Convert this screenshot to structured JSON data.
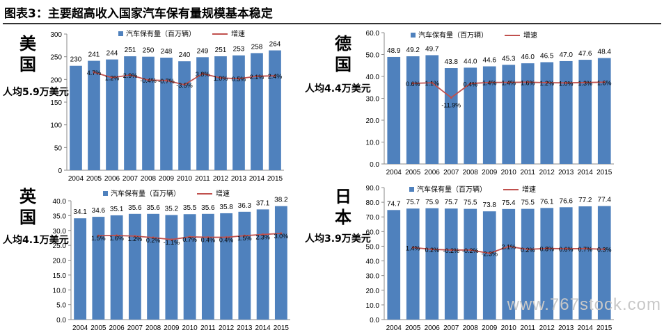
{
  "figure_title": "图表3：主要超高收入国家汽车保有量规模基本稳定",
  "watermark": "www.767stock.com",
  "colors": {
    "bar": "#4f81bd",
    "line": "#c0504d",
    "axis": "#888888",
    "text": "#000000"
  },
  "legend": {
    "bar_label": "汽车保有量（百万辆）",
    "line_label": "增速"
  },
  "chart_data": [
    {
      "type": "bar+line",
      "country": "美国",
      "per_capita": "人均5.9万美元",
      "categories": [
        "2004",
        "2005",
        "2006",
        "2007",
        "2008",
        "2009",
        "2010",
        "2011",
        "2012",
        "2013",
        "2014",
        "2015"
      ],
      "ylim": [
        0,
        300
      ],
      "yticks": [
        "0",
        "50",
        "100",
        "150",
        "200",
        "250",
        "300"
      ],
      "bar_labels": [
        "230",
        "241",
        "244",
        "251",
        "250",
        "248",
        "240",
        "249",
        "251",
        "253",
        "258",
        "264"
      ],
      "series": [
        {
          "name": "汽车保有量（百万辆）",
          "values": [
            230,
            241,
            244,
            251,
            250,
            248,
            240,
            249,
            251,
            253,
            258,
            264
          ]
        },
        {
          "name": "增速",
          "values": [
            null,
            4.7,
            1.2,
            2.9,
            -0.4,
            -0.7,
            -3.5,
            3.8,
            1.0,
            0.5,
            2.1,
            2.4
          ],
          "labels": [
            "",
            "4.7%",
            "1.2%",
            "2.9%",
            "-0.4%",
            "-0.7%",
            "-3.5%",
            "3.8%",
            "1.0%",
            "0.5%",
            "2.1%",
            "2.4%"
          ]
        }
      ]
    },
    {
      "type": "bar+line",
      "country": "德国",
      "per_capita": "人均4.4万美元",
      "categories": [
        "2004",
        "2005",
        "2006",
        "2007",
        "2008",
        "2009",
        "2010",
        "2011",
        "2012",
        "2013",
        "2014",
        "2015"
      ],
      "ylim": [
        0,
        60
      ],
      "yticks": [
        "0.0",
        "10.0",
        "20.0",
        "30.0",
        "40.0",
        "50.0",
        "60.0"
      ],
      "bar_labels": [
        "48.9",
        "49.2",
        "49.7",
        "43.8",
        "44.0",
        "44.6",
        "45.3",
        "46.0",
        "46.5",
        "47.0",
        "47.6",
        "48.4"
      ],
      "series": [
        {
          "name": "汽车保有量（百万辆）",
          "values": [
            48.9,
            49.2,
            49.7,
            43.8,
            44.0,
            44.6,
            45.3,
            46.0,
            46.5,
            47.0,
            47.6,
            48.4
          ]
        },
        {
          "name": "增速",
          "values": [
            null,
            0.6,
            1.1,
            -11.9,
            0.4,
            1.4,
            1.4,
            1.6,
            1.2,
            1.0,
            1.3,
            1.6
          ],
          "labels": [
            "",
            "0.6%",
            "1.1%",
            "-11.9%",
            "0.4%",
            "1.4%",
            "1.4%",
            "1.6%",
            "1.2%",
            "1.0%",
            "1.3%",
            "1.6%"
          ]
        }
      ]
    },
    {
      "type": "bar+line",
      "country": "英国",
      "per_capita": "人均4.1万美元",
      "categories": [
        "2004",
        "2005",
        "2006",
        "2007",
        "2008",
        "2009",
        "2010",
        "2011",
        "2012",
        "2013",
        "2014",
        "2015"
      ],
      "ylim": [
        0,
        40
      ],
      "yticks": [
        "0.0",
        "5.0",
        "10.0",
        "15.0",
        "20.0",
        "25.0",
        "30.0",
        "35.0",
        "40.0"
      ],
      "bar_labels": [
        "34.1",
        "34.6",
        "35.1",
        "35.6",
        "35.6",
        "35.2",
        "35.5",
        "35.6",
        "35.8",
        "36.3",
        "37.1",
        "38.2"
      ],
      "series": [
        {
          "name": "汽车保有量（百万辆）",
          "values": [
            34.1,
            34.6,
            35.1,
            35.6,
            35.6,
            35.2,
            35.5,
            35.6,
            35.8,
            36.3,
            37.1,
            38.2
          ]
        },
        {
          "name": "增速",
          "values": [
            null,
            1.5,
            1.6,
            1.2,
            0.2,
            -1.1,
            0.7,
            0.4,
            0.4,
            1.5,
            2.3,
            3.0
          ],
          "labels": [
            "",
            "1.5%",
            "1.6%",
            "1.2%",
            "0.2%",
            "-1.1%",
            "0.7%",
            "0.4%",
            "0.4%",
            "1.5%",
            "2.3%",
            "3.0%"
          ]
        }
      ]
    },
    {
      "type": "bar+line",
      "country": "日本",
      "per_capita": "人均3.9万美元",
      "categories": [
        "2004",
        "2005",
        "2006",
        "2007",
        "2008",
        "2009",
        "2010",
        "2011",
        "2012",
        "2013",
        "2014",
        "2015"
      ],
      "ylim": [
        0,
        90
      ],
      "yticks": [
        "0.0",
        "10.0",
        "20.0",
        "30.0",
        "40.0",
        "50.0",
        "60.0",
        "70.0",
        "80.0",
        "90.0"
      ],
      "bar_labels": [
        "74.7",
        "75.7",
        "75.9",
        "75.7",
        "75.5",
        "73.8",
        "75.4",
        "75.5",
        "76.1",
        "76.6",
        "77.2",
        "77.4"
      ],
      "series": [
        {
          "name": "汽车保有量（百万辆）",
          "values": [
            74.7,
            75.7,
            75.9,
            75.7,
            75.5,
            73.8,
            75.4,
            75.5,
            76.1,
            76.6,
            77.2,
            77.4
          ]
        },
        {
          "name": "增速",
          "values": [
            null,
            1.4,
            0.2,
            -0.2,
            -0.2,
            -2.3,
            2.1,
            0.2,
            0.8,
            0.6,
            0.7,
            0.3
          ],
          "labels": [
            "",
            "1.4%",
            "0.2%",
            "-0.2%",
            "-0.2%",
            "-2.3%",
            "2.1%",
            "0.2%",
            "0.8%",
            "0.6%",
            "0.7%",
            "0.3%"
          ]
        }
      ]
    }
  ]
}
